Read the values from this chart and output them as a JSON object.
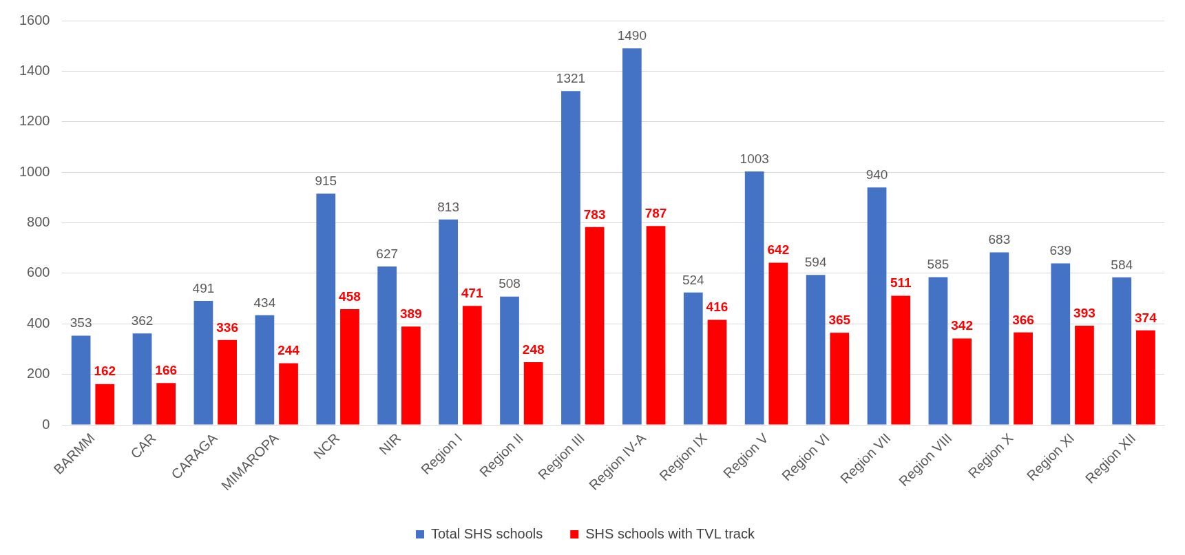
{
  "chart_data": {
    "type": "bar",
    "categories": [
      "BARMM",
      "CAR",
      "CARAGA",
      "MIMAROPA",
      "NCR",
      "NIR",
      "Region I",
      "Region II",
      "Region III",
      "Region IV-A",
      "Region IX",
      "Region V",
      "Region VI",
      "Region VII",
      "Region VIII",
      "Region X",
      "Region XI",
      "Region XII"
    ],
    "series": [
      {
        "name": "Total SHS schools",
        "color": "#4472c4",
        "values": [
          353,
          362,
          491,
          434,
          915,
          627,
          813,
          508,
          1321,
          1490,
          524,
          1003,
          594,
          940,
          585,
          683,
          639,
          584
        ]
      },
      {
        "name": "SHS schools with TVL track",
        "color": "#ff0000",
        "values": [
          162,
          166,
          336,
          244,
          458,
          389,
          471,
          248,
          783,
          787,
          416,
          642,
          365,
          511,
          342,
          366,
          393,
          374
        ]
      }
    ],
    "ylim": [
      0,
      1600
    ],
    "yticks": [
      0,
      200,
      400,
      600,
      800,
      1000,
      1200,
      1400,
      1600
    ],
    "grid": "y",
    "legend": "bottom",
    "data_labels": true
  }
}
